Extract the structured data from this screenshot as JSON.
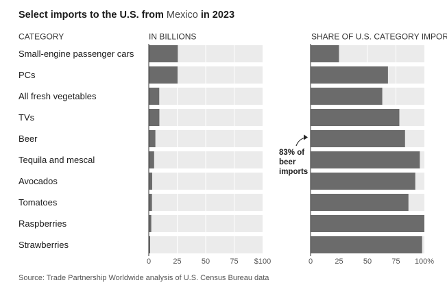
{
  "title": {
    "part1": "Select imports to the U.S. from ",
    "highlight": "Mexico",
    "part2": " in 2023"
  },
  "colors": {
    "bar": "#6b6b6b",
    "track": "#ebebeb",
    "gridline": "#ffffff",
    "highlight_bg": "#e9e9e9",
    "text": "#1a1a1a",
    "muted": "#555555"
  },
  "chart_data": [
    {
      "type": "bar",
      "orientation": "horizontal",
      "column_header": "CATEGORY",
      "panel_header": "IN BILLIONS",
      "categories": [
        "Small-engine passenger cars",
        "PCs",
        "All fresh vegetables",
        "TVs",
        "Beer",
        "Tequila and mescal",
        "Avocados",
        "Tomatoes",
        "Raspberries",
        "Strawberries"
      ],
      "values": [
        25.5,
        25.3,
        9.2,
        9.3,
        5.8,
        4.7,
        3.0,
        2.8,
        2.2,
        1.2
      ],
      "xlim": [
        0,
        100
      ],
      "ticks": [
        "0",
        "25",
        "50",
        "75",
        "$100"
      ],
      "grid": true
    },
    {
      "type": "bar",
      "orientation": "horizontal",
      "panel_header": "SHARE OF U.S. CATEGORY IMPORTS",
      "categories": [
        "Small-engine passenger cars",
        "PCs",
        "All fresh vegetables",
        "TVs",
        "Beer",
        "Tequila and mescal",
        "Avocados",
        "Tomatoes",
        "Raspberries",
        "Strawberries"
      ],
      "values": [
        25,
        68,
        63,
        78,
        83,
        96,
        92,
        86,
        100,
        98
      ],
      "xlim": [
        0,
        100
      ],
      "ticks": [
        "0",
        "25",
        "50",
        "75",
        "100%"
      ],
      "grid": true,
      "annotation": {
        "lines": [
          "83% of",
          "beer",
          "imports"
        ],
        "category": "Beer"
      }
    }
  ],
  "source": "Source: Trade Partnership Worldwide analysis of U.S. Census Bureau data"
}
